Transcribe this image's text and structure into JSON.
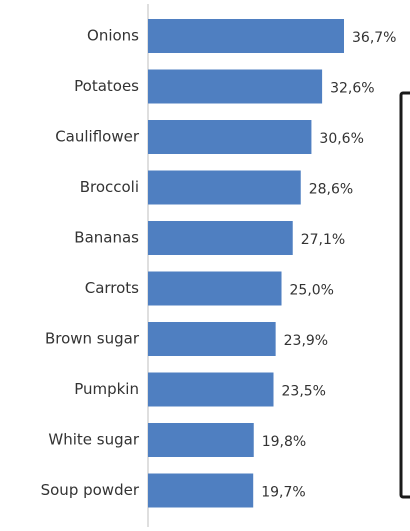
{
  "chart_data": {
    "type": "bar",
    "orientation": "horizontal",
    "categories": [
      "Onions",
      "Potatoes",
      "Cauliflower",
      "Broccoli",
      "Bananas",
      "Carrots",
      "Brown sugar",
      "Pumpkin",
      "White sugar",
      "Soup powder"
    ],
    "values": [
      36.7,
      32.6,
      30.6,
      28.6,
      27.1,
      25.0,
      23.9,
      23.5,
      19.8,
      19.7
    ],
    "value_labels": [
      "36,7%",
      "32,6%",
      "30,6%",
      "28,6%",
      "27,1%",
      "25,0%",
      "23,9%",
      "23,5%",
      "19,8%",
      "19,7%"
    ],
    "title": "",
    "xlabel": "",
    "ylabel": "",
    "grid": false,
    "legend": "none",
    "bar_color": "#4f7fc1",
    "axis_color": "#bfbfbf"
  }
}
